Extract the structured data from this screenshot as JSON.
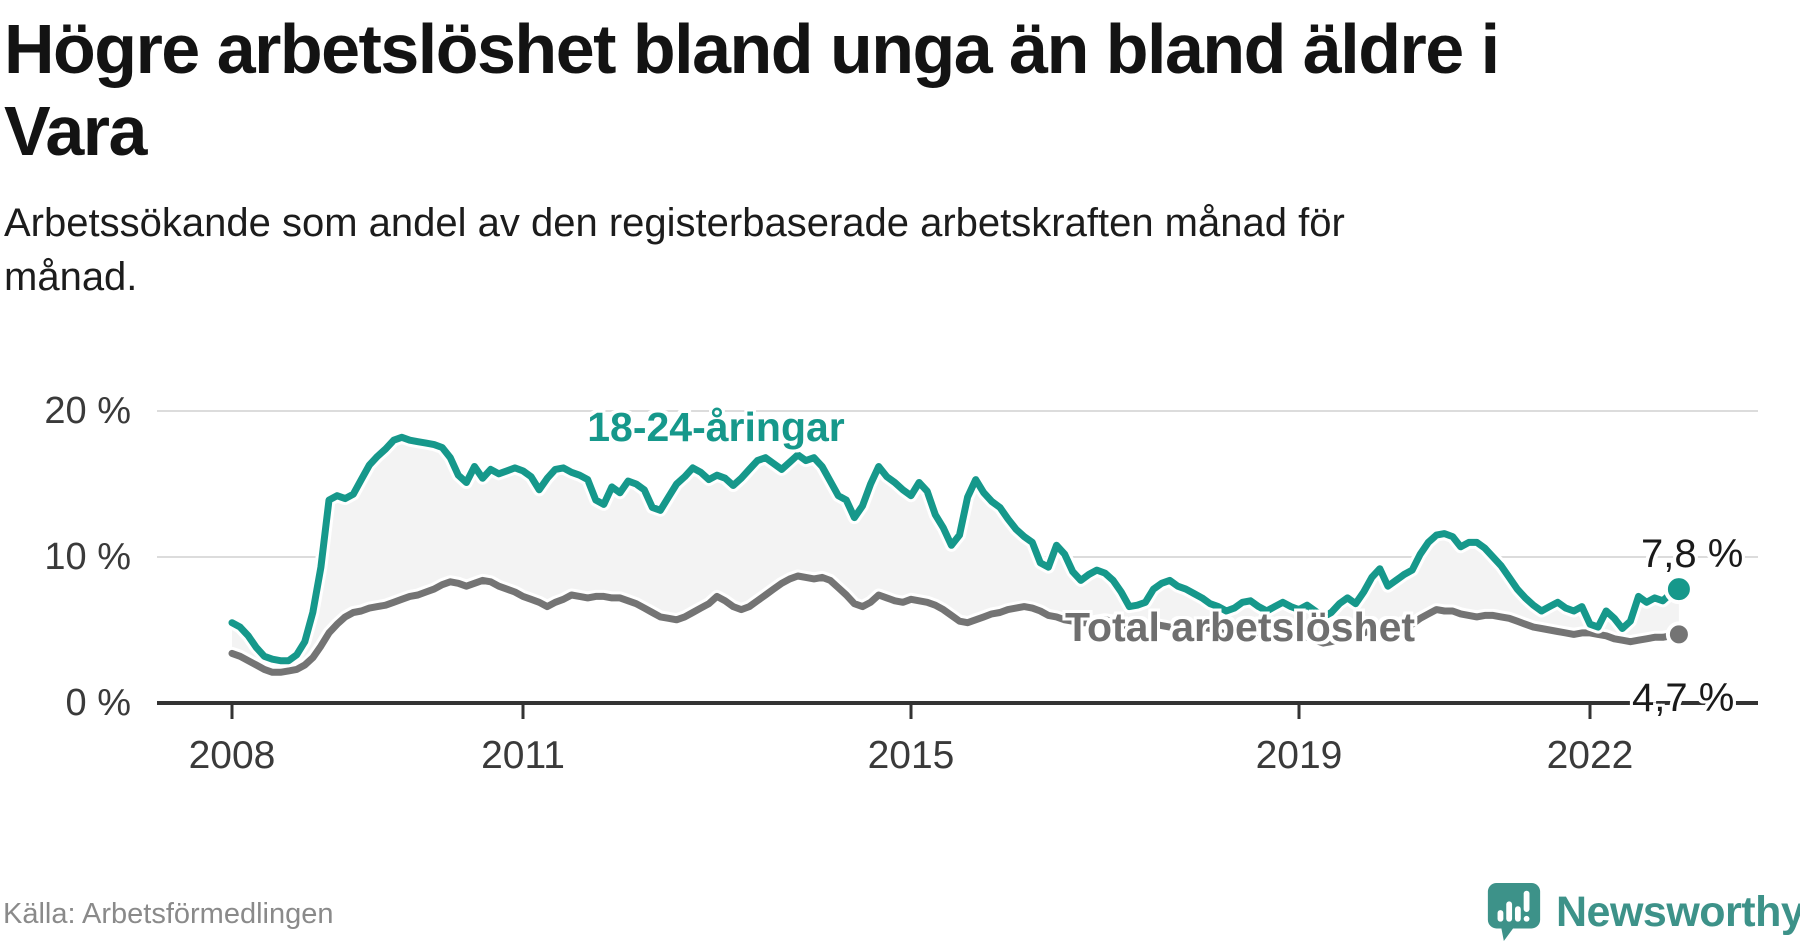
{
  "header": {
    "title": "Högre arbetslöshet bland unga än bland äldre i Vara",
    "title_lines": [
      "Högre arbetslöshet bland unga än bland äldre i",
      "Vara"
    ],
    "subtitle_lines": [
      "Arbetssökande som andel av den registerbaserade arbetskraften månad för",
      "månad."
    ]
  },
  "footer": {
    "source": "Källa: Arbetsförmedlingen",
    "brand_name": "Newsworthy",
    "brand_color": "#3d9289",
    "brand_icon": "newsworthy-speech-bubble-bar-chart-icon"
  },
  "chart_data": {
    "type": "line",
    "x_start": "2008-01",
    "x_end": "2022-12",
    "x_interval": "month",
    "x_tick_years": [
      2008,
      2011,
      2015,
      2019,
      2022
    ],
    "x_tick_labels": [
      "2008",
      "2011",
      "2015",
      "2019",
      "2022"
    ],
    "y_ticks": [
      0,
      10,
      20
    ],
    "y_tick_labels": [
      "0 %",
      "10 %",
      "20 %"
    ],
    "ylim": [
      0,
      21.5
    ],
    "grid": "horizontal",
    "band_fill_between_series": "#f3f3f3",
    "grid_color": "#dcdcdc",
    "axis_color": "#333333",
    "series": [
      {
        "name": "18-24-åringar",
        "color": "#16988b",
        "end_value": 7.8,
        "end_label": "7,8 %",
        "values": [
          5.5,
          5.2,
          4.6,
          3.8,
          3.2,
          3.0,
          2.9,
          2.9,
          3.3,
          4.2,
          6.2,
          9.3,
          13.9,
          14.2,
          14.0,
          14.3,
          15.3,
          16.3,
          16.9,
          17.4,
          18.0,
          18.2,
          18.0,
          17.9,
          17.8,
          17.7,
          17.5,
          16.8,
          15.6,
          15.1,
          16.2,
          15.4,
          16.0,
          15.7,
          15.9,
          16.1,
          15.9,
          15.5,
          14.6,
          15.4,
          16.0,
          16.1,
          15.8,
          15.6,
          15.3,
          13.9,
          13.6,
          14.8,
          14.4,
          15.2,
          15.0,
          14.6,
          13.4,
          13.2,
          14.1,
          15.0,
          15.5,
          16.1,
          15.8,
          15.3,
          15.6,
          15.4,
          14.9,
          15.4,
          16.0,
          16.6,
          16.8,
          16.4,
          16.0,
          16.5,
          17.0,
          16.6,
          16.8,
          16.2,
          15.2,
          14.2,
          13.9,
          12.7,
          13.5,
          15.0,
          16.2,
          15.5,
          15.1,
          14.6,
          14.2,
          15.1,
          14.5,
          12.9,
          12.0,
          10.8,
          11.5,
          14.1,
          15.3,
          14.4,
          13.8,
          13.4,
          12.6,
          11.9,
          11.4,
          11.0,
          9.6,
          9.3,
          10.8,
          10.2,
          9.0,
          8.4,
          8.8,
          9.1,
          8.9,
          8.4,
          7.6,
          6.6,
          6.7,
          6.9,
          7.8,
          8.2,
          8.4,
          8.0,
          7.8,
          7.5,
          7.2,
          6.8,
          6.6,
          6.3,
          6.5,
          6.9,
          7.0,
          6.6,
          6.3,
          6.6,
          6.9,
          6.6,
          6.4,
          6.7,
          6.3,
          5.9,
          6.2,
          6.8,
          7.2,
          6.8,
          7.6,
          8.6,
          9.2,
          8.0,
          8.4,
          8.8,
          9.1,
          10.2,
          11.0,
          11.5,
          11.6,
          11.4,
          10.7,
          11.0,
          11.0,
          10.6,
          10.0,
          9.4,
          8.6,
          7.8,
          7.2,
          6.7,
          6.3,
          6.6,
          6.9,
          6.5,
          6.3,
          6.6,
          5.4,
          5.2,
          6.3,
          5.8,
          5.1,
          5.6,
          7.3,
          6.9,
          7.2,
          7.0,
          7.5,
          7.8
        ]
      },
      {
        "name": "Total arbetslöshet",
        "color": "#747474",
        "end_value": 4.7,
        "end_label": "4,7 %",
        "values": [
          3.4,
          3.2,
          2.9,
          2.6,
          2.3,
          2.1,
          2.1,
          2.2,
          2.3,
          2.6,
          3.1,
          3.9,
          4.8,
          5.4,
          5.9,
          6.2,
          6.3,
          6.5,
          6.6,
          6.7,
          6.9,
          7.1,
          7.3,
          7.4,
          7.6,
          7.8,
          8.1,
          8.3,
          8.2,
          8.0,
          8.2,
          8.4,
          8.3,
          8.0,
          7.8,
          7.6,
          7.3,
          7.1,
          6.9,
          6.6,
          6.9,
          7.1,
          7.4,
          7.3,
          7.2,
          7.3,
          7.3,
          7.2,
          7.2,
          7.0,
          6.8,
          6.5,
          6.2,
          5.9,
          5.8,
          5.7,
          5.9,
          6.2,
          6.5,
          6.8,
          7.3,
          7.0,
          6.6,
          6.4,
          6.6,
          7.0,
          7.4,
          7.8,
          8.2,
          8.5,
          8.7,
          8.6,
          8.5,
          8.6,
          8.4,
          7.9,
          7.4,
          6.8,
          6.6,
          6.9,
          7.4,
          7.2,
          7.0,
          6.9,
          7.1,
          7.0,
          6.9,
          6.7,
          6.4,
          6.0,
          5.6,
          5.5,
          5.7,
          5.9,
          6.1,
          6.2,
          6.4,
          6.5,
          6.6,
          6.5,
          6.3,
          6.0,
          5.9,
          5.7,
          5.6,
          5.5,
          5.5,
          5.6,
          5.7,
          5.6,
          5.4,
          5.2,
          5.1,
          5.2,
          5.4,
          5.3,
          5.2,
          5.1,
          5.0,
          5.1,
          5.2,
          5.1,
          4.9,
          4.7,
          4.6,
          4.7,
          4.9,
          4.8,
          4.6,
          4.5,
          4.4,
          4.5,
          4.6,
          4.5,
          4.3,
          4.1,
          4.2,
          4.4,
          4.7,
          4.6,
          4.8,
          5.0,
          5.1,
          5.2,
          5.3,
          5.2,
          5.4,
          5.8,
          6.1,
          6.4,
          6.3,
          6.3,
          6.1,
          6.0,
          5.9,
          6.0,
          6.0,
          5.9,
          5.8,
          5.6,
          5.4,
          5.2,
          5.1,
          5.0,
          4.9,
          4.8,
          4.7,
          4.8,
          4.8,
          4.7,
          4.6,
          4.4,
          4.3,
          4.2,
          4.3,
          4.4,
          4.5,
          4.5,
          4.6,
          4.7
        ]
      }
    ]
  }
}
